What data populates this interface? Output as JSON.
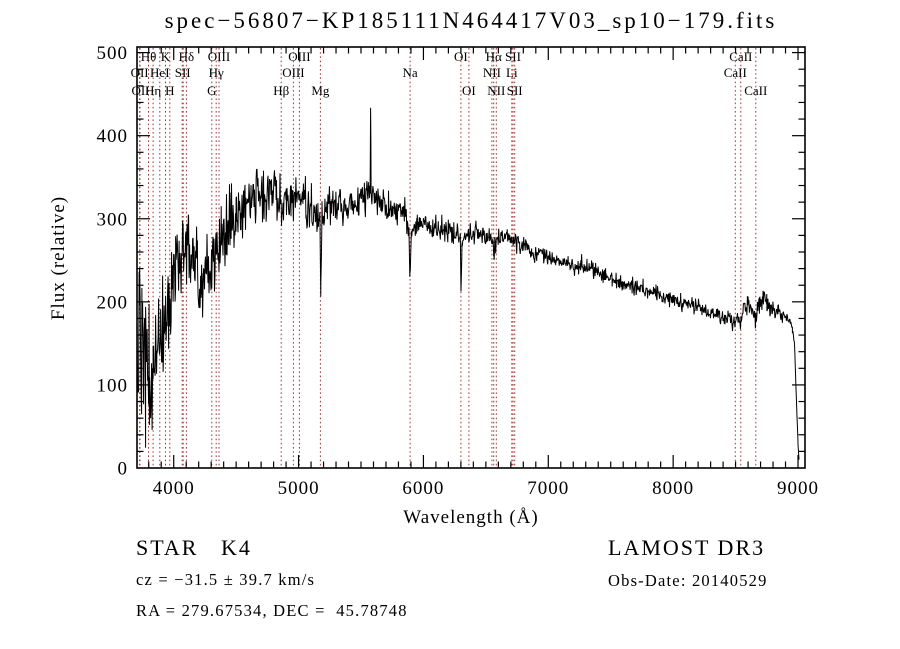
{
  "title": "spec−56807−KP185111N464417V03_sp10−179.fits",
  "info": {
    "class_line": "STAR   K4",
    "survey": "LAMOST DR3",
    "cz_line": "cz = −31.5 ± 39.7 km/s",
    "obs_date": "Obs-Date: 20140529",
    "radec_line": "RA = 279.67534, DEC =  45.78748"
  },
  "chart_data": {
    "type": "line",
    "title": "spec−56807−KP185111N464417V03_sp10−179.fits",
    "xlabel": "Wavelength (Å)",
    "ylabel": "Flux (relative)",
    "xlim": [
      3706,
      9056
    ],
    "ylim": [
      0,
      500
    ],
    "x_major_ticks": [
      4000,
      5000,
      6000,
      7000,
      8000,
      9000
    ],
    "x_minor_step": 100,
    "y_major_ticks": [
      0,
      100,
      200,
      300,
      400,
      500
    ],
    "y_minor_step": 20,
    "grid": false,
    "legend": "none",
    "line_color": "#000000",
    "marker_color": "#9e3838",
    "frame_color": "#000000",
    "noise_seed": 20140529,
    "marker_lines": [
      3727,
      3730,
      3798,
      3835,
      3889,
      3934,
      3969,
      4068,
      4076,
      4102,
      4305,
      4340,
      4363,
      4861,
      4959,
      5007,
      5175,
      5893,
      6300,
      6364,
      6548,
      6563,
      6584,
      6708,
      6717,
      6731,
      8498,
      8542,
      8662
    ],
    "marker_labels": [
      {
        "text": "Hθ",
        "wavelength": 3798,
        "row": 1
      },
      {
        "text": "K",
        "wavelength": 3934,
        "row": 1
      },
      {
        "text": "Hδ",
        "wavelength": 4102,
        "row": 1
      },
      {
        "text": "OIII",
        "wavelength": 4363,
        "row": 1
      },
      {
        "text": "OIII",
        "wavelength": 5007,
        "row": 1
      },
      {
        "text": "OI",
        "wavelength": 6300,
        "row": 1
      },
      {
        "text": "Hα",
        "wavelength": 6563,
        "row": 1
      },
      {
        "text": "SII",
        "wavelength": 6717,
        "row": 1
      },
      {
        "text": "CaII",
        "wavelength": 8542,
        "row": 1
      },
      {
        "text": "OII",
        "wavelength": 3727,
        "row": 2
      },
      {
        "text": "HeI",
        "wavelength": 3889,
        "row": 2
      },
      {
        "text": "SII",
        "wavelength": 4072,
        "row": 2
      },
      {
        "text": "Hγ",
        "wavelength": 4340,
        "row": 2
      },
      {
        "text": "OIII",
        "wavelength": 4959,
        "row": 2
      },
      {
        "text": "Na",
        "wavelength": 5893,
        "row": 2
      },
      {
        "text": "NII",
        "wavelength": 6548,
        "row": 2
      },
      {
        "text": "Li",
        "wavelength": 6708,
        "row": 2
      },
      {
        "text": "CaII",
        "wavelength": 8498,
        "row": 2
      },
      {
        "text": "OII",
        "wavelength": 3734,
        "row": 3
      },
      {
        "text": "Hη",
        "wavelength": 3835,
        "row": 3
      },
      {
        "text": "H",
        "wavelength": 3969,
        "row": 3
      },
      {
        "text": "G",
        "wavelength": 4305,
        "row": 3
      },
      {
        "text": "Hβ",
        "wavelength": 4861,
        "row": 3
      },
      {
        "text": "Mg",
        "wavelength": 5175,
        "row": 3
      },
      {
        "text": "OI",
        "wavelength": 6364,
        "row": 3
      },
      {
        "text": "NII",
        "wavelength": 6584,
        "row": 3
      },
      {
        "text": "SII",
        "wavelength": 6731,
        "row": 3
      },
      {
        "text": "CaII",
        "wavelength": 8662,
        "row": 3
      }
    ],
    "sky_emission_spike": {
      "wavelength": 5577,
      "flux": 432
    },
    "spectrum_anchors": [
      [
        3707,
        150,
        135
      ],
      [
        3725,
        165,
        125
      ],
      [
        3745,
        150,
        105
      ],
      [
        3775,
        125,
        85
      ],
      [
        3805,
        108,
        70
      ],
      [
        3835,
        112,
        62
      ],
      [
        3865,
        128,
        65
      ],
      [
        3895,
        150,
        68
      ],
      [
        3925,
        172,
        62
      ],
      [
        3955,
        195,
        58
      ],
      [
        3985,
        218,
        52
      ],
      [
        4015,
        235,
        48
      ],
      [
        4045,
        242,
        46
      ],
      [
        4075,
        242,
        48
      ],
      [
        4105,
        255,
        48
      ],
      [
        4117,
        295,
        50
      ],
      [
        4130,
        268,
        48
      ],
      [
        4160,
        255,
        48
      ],
      [
        4190,
        238,
        48
      ],
      [
        4227,
        212,
        45
      ],
      [
        4262,
        242,
        42
      ],
      [
        4305,
        244,
        42
      ],
      [
        4340,
        262,
        40
      ],
      [
        4380,
        272,
        40
      ],
      [
        4420,
        284,
        38
      ],
      [
        4460,
        292,
        36
      ],
      [
        4500,
        300,
        34
      ],
      [
        4540,
        310,
        34
      ],
      [
        4580,
        318,
        34
      ],
      [
        4620,
        325,
        35
      ],
      [
        4660,
        330,
        35
      ],
      [
        4700,
        331,
        33
      ],
      [
        4740,
        326,
        31
      ],
      [
        4780,
        330,
        30
      ],
      [
        4820,
        331,
        30
      ],
      [
        4861,
        323,
        29
      ],
      [
        4900,
        331,
        29
      ],
      [
        4940,
        337,
        30
      ],
      [
        4980,
        331,
        28
      ],
      [
        5020,
        325,
        27
      ],
      [
        5060,
        318,
        26
      ],
      [
        5100,
        314,
        25
      ],
      [
        5140,
        307,
        25
      ],
      [
        5170,
        300,
        24
      ],
      [
        5178,
        220,
        14
      ],
      [
        5188,
        297,
        23
      ],
      [
        5230,
        314,
        23
      ],
      [
        5270,
        318,
        23
      ],
      [
        5320,
        318,
        22
      ],
      [
        5370,
        315,
        21
      ],
      [
        5420,
        317,
        20
      ],
      [
        5470,
        320,
        20
      ],
      [
        5520,
        326,
        19
      ],
      [
        5560,
        330,
        18
      ],
      [
        5573,
        330,
        15
      ],
      [
        5577,
        432,
        5
      ],
      [
        5581,
        328,
        15
      ],
      [
        5620,
        326,
        17
      ],
      [
        5670,
        320,
        17
      ],
      [
        5720,
        316,
        16
      ],
      [
        5770,
        311,
        16
      ],
      [
        5820,
        309,
        15
      ],
      [
        5860,
        304,
        14
      ],
      [
        5884,
        288,
        12
      ],
      [
        5893,
        230,
        10
      ],
      [
        5903,
        286,
        12
      ],
      [
        5950,
        297,
        14
      ],
      [
        6000,
        294,
        14
      ],
      [
        6060,
        291,
        13
      ],
      [
        6120,
        288,
        13
      ],
      [
        6180,
        286,
        13
      ],
      [
        6240,
        284,
        13
      ],
      [
        6294,
        280,
        12
      ],
      [
        6301,
        212,
        10
      ],
      [
        6309,
        279,
        12
      ],
      [
        6360,
        282,
        12
      ],
      [
        6420,
        284,
        12
      ],
      [
        6480,
        281,
        12
      ],
      [
        6530,
        277,
        11
      ],
      [
        6555,
        272,
        10
      ],
      [
        6563,
        250,
        9
      ],
      [
        6572,
        272,
        10
      ],
      [
        6620,
        277,
        11
      ],
      [
        6670,
        277,
        11
      ],
      [
        6720,
        274,
        11
      ],
      [
        6770,
        271,
        11
      ],
      [
        6820,
        268,
        11
      ],
      [
        6850,
        266,
        11
      ],
      [
        6867,
        256,
        10
      ],
      [
        6910,
        261,
        11
      ],
      [
        6960,
        257,
        11
      ],
      [
        7010,
        254,
        10
      ],
      [
        7060,
        250,
        10
      ],
      [
        7110,
        248,
        10
      ],
      [
        7160,
        246,
        10
      ],
      [
        7210,
        244,
        10
      ],
      [
        7260,
        243,
        10
      ],
      [
        7310,
        241,
        10
      ],
      [
        7360,
        238,
        10
      ],
      [
        7410,
        235,
        9
      ],
      [
        7460,
        231,
        9
      ],
      [
        7510,
        227,
        9
      ],
      [
        7560,
        223,
        9
      ],
      [
        7610,
        220,
        9
      ],
      [
        7660,
        221,
        9
      ],
      [
        7710,
        219,
        9
      ],
      [
        7760,
        216,
        9
      ],
      [
        7810,
        213,
        9
      ],
      [
        7860,
        210,
        9
      ],
      [
        7910,
        207,
        9
      ],
      [
        7960,
        205,
        8
      ],
      [
        8010,
        203,
        8
      ],
      [
        8060,
        200,
        8
      ],
      [
        8110,
        198,
        8
      ],
      [
        8160,
        195,
        8
      ],
      [
        8210,
        193,
        8
      ],
      [
        8260,
        190,
        8
      ],
      [
        8310,
        187,
        8
      ],
      [
        8360,
        184,
        8
      ],
      [
        8410,
        181,
        8
      ],
      [
        8460,
        179,
        9
      ],
      [
        8498,
        173,
        9
      ],
      [
        8520,
        184,
        10
      ],
      [
        8542,
        177,
        10
      ],
      [
        8570,
        190,
        11
      ],
      [
        8600,
        197,
        12
      ],
      [
        8630,
        190,
        12
      ],
      [
        8662,
        184,
        12
      ],
      [
        8690,
        197,
        13
      ],
      [
        8720,
        201,
        13
      ],
      [
        8750,
        197,
        12
      ],
      [
        8780,
        191,
        11
      ],
      [
        8810,
        187,
        10
      ],
      [
        8840,
        185,
        9
      ],
      [
        8870,
        183,
        8
      ],
      [
        8900,
        181,
        7
      ],
      [
        8930,
        177,
        6
      ],
      [
        8955,
        170,
        5
      ],
      [
        8972,
        148,
        4
      ],
      [
        8987,
        82,
        3
      ],
      [
        9000,
        28,
        2
      ],
      [
        9008,
        10,
        1
      ]
    ]
  }
}
